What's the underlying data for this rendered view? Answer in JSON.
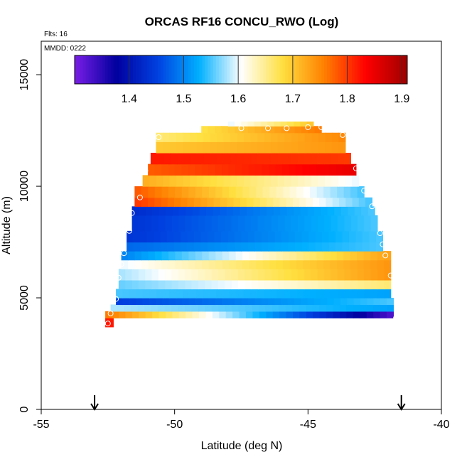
{
  "chart_data": {
    "type": "heatmap",
    "title": "ORCAS RF16 CONCU_RWO (Log)",
    "note_flights": "Flts: 16",
    "note_date": "MMDD: 0222",
    "xlabel": "Latitude (deg N)",
    "ylabel": "Altitude (m)",
    "xlim": [
      -55,
      -40
    ],
    "ylim": [
      0,
      16500
    ],
    "x_ticks": [
      -55,
      -50,
      -45,
      -40
    ],
    "x_tick_labels": [
      "-55",
      "-50",
      "-45",
      "-40"
    ],
    "y_ticks": [
      0,
      5000,
      10000,
      15000
    ],
    "y_tick_labels": [
      "0",
      "5000",
      "10000",
      "15000"
    ],
    "colorbar": {
      "range": [
        1.3,
        1.91
      ],
      "ticks": [
        1.4,
        1.5,
        1.6,
        1.7,
        1.8,
        1.9
      ],
      "tick_labels": [
        "1.4",
        "1.5",
        "1.6",
        "1.7",
        "1.8",
        "1.9"
      ],
      "colors": [
        "#7a1ee6",
        "#00009e",
        "#0040e0",
        "#00b0ff",
        "#ffffff",
        "#ffe040",
        "#ff8000",
        "#ff0000",
        "#9e0000"
      ]
    },
    "arrows_latitude": [
      -53.0,
      -41.5
    ],
    "layers": [
      {
        "y0": 3700,
        "y1": 4100,
        "x0": -52.6,
        "x1": -52.3,
        "v_south": 1.82,
        "v_north": 1.82
      },
      {
        "y0": 4100,
        "y1": 4400,
        "x0": -52.6,
        "x1": -41.8,
        "v_south": 1.76,
        "v_north": 1.33
      },
      {
        "y0": 4400,
        "y1": 4700,
        "x0": -52.4,
        "x1": -41.8,
        "v_south": 1.58,
        "v_north": 1.52
      },
      {
        "y0": 4700,
        "y1": 5000,
        "x0": -52.2,
        "x1": -41.8,
        "v_south": 1.45,
        "v_north": 1.55
      },
      {
        "y0": 5000,
        "y1": 5400,
        "x0": -52.2,
        "x1": -41.9,
        "v_south": 1.55,
        "v_north": 1.52
      },
      {
        "y0": 5400,
        "y1": 5800,
        "x0": -52.1,
        "x1": -41.9,
        "v_south": 1.56,
        "v_north": 1.66
      },
      {
        "y0": 5800,
        "y1": 6300,
        "x0": -52.1,
        "x1": -41.9,
        "v_south": 1.58,
        "v_north": 1.74
      },
      {
        "y0": 6300,
        "y1": 6700,
        "x0": -52.0,
        "x1": -41.9,
        "v_south": 1.6,
        "v_north": 1.74
      },
      {
        "y0": 6700,
        "y1": 7100,
        "x0": -52.0,
        "x1": -41.9,
        "v_south": 1.5,
        "v_north": 1.73
      },
      {
        "y0": 7100,
        "y1": 7500,
        "x0": -51.8,
        "x1": -42.2,
        "v_south": 1.48,
        "v_north": 1.55
      },
      {
        "y0": 7500,
        "y1": 8000,
        "x0": -51.8,
        "x1": -42.2,
        "v_south": 1.44,
        "v_north": 1.55
      },
      {
        "y0": 8000,
        "y1": 8700,
        "x0": -51.6,
        "x1": -42.4,
        "v_south": 1.44,
        "v_north": 1.55
      },
      {
        "y0": 8700,
        "y1": 9100,
        "x0": -51.6,
        "x1": -42.5,
        "v_south": 1.43,
        "v_north": 1.55
      },
      {
        "y0": 9100,
        "y1": 9500,
        "x0": -51.5,
        "x1": -42.6,
        "v_south": 1.8,
        "v_north": 1.55
      },
      {
        "y0": 9500,
        "y1": 10000,
        "x0": -51.5,
        "x1": -42.9,
        "v_south": 1.78,
        "v_north": 1.55
      },
      {
        "y0": 10000,
        "y1": 10500,
        "x0": -51.2,
        "x1": -43.1,
        "v_south": 1.72,
        "v_north": 1.6
      },
      {
        "y0": 10500,
        "y1": 11000,
        "x0": -51.0,
        "x1": -43.2,
        "v_south": 1.78,
        "v_north": 1.85
      },
      {
        "y0": 11000,
        "y1": 11500,
        "x0": -50.9,
        "x1": -43.4,
        "v_south": 1.82,
        "v_north": 1.8
      },
      {
        "y0": 11500,
        "y1": 12000,
        "x0": -50.7,
        "x1": -43.6,
        "v_south": 1.7,
        "v_north": 1.74
      },
      {
        "y0": 12000,
        "y1": 12400,
        "x0": -50.7,
        "x1": -43.6,
        "v_south": 1.66,
        "v_north": 1.75
      },
      {
        "y0": 12400,
        "y1": 12700,
        "x0": -49.0,
        "x1": -44.5,
        "v_south": 1.68,
        "v_north": 1.76
      },
      {
        "y0": 12700,
        "y1": 12900,
        "x0": -48.0,
        "x1": -44.8,
        "v_south": 1.6,
        "v_north": 1.7
      }
    ],
    "markers": [
      {
        "lat": -52.5,
        "alt": 3850
      },
      {
        "lat": -52.4,
        "alt": 4300
      },
      {
        "lat": -52.2,
        "alt": 4950
      },
      {
        "lat": -52.1,
        "alt": 5900
      },
      {
        "lat": -52.0,
        "alt": 6500
      },
      {
        "lat": -51.9,
        "alt": 7000
      },
      {
        "lat": -51.7,
        "alt": 8000
      },
      {
        "lat": -51.6,
        "alt": 8800
      },
      {
        "lat": -51.3,
        "alt": 9500
      },
      {
        "lat": -51.1,
        "alt": 10700
      },
      {
        "lat": -50.6,
        "alt": 12200
      },
      {
        "lat": -47.5,
        "alt": 12600
      },
      {
        "lat": -46.5,
        "alt": 12600
      },
      {
        "lat": -45.8,
        "alt": 12600
      },
      {
        "lat": -45.0,
        "alt": 12650
      },
      {
        "lat": -44.5,
        "alt": 12650
      },
      {
        "lat": -43.7,
        "alt": 12300
      },
      {
        "lat": -43.2,
        "alt": 10800
      },
      {
        "lat": -42.9,
        "alt": 9800
      },
      {
        "lat": -42.6,
        "alt": 9100
      },
      {
        "lat": -42.3,
        "alt": 7900
      },
      {
        "lat": -42.2,
        "alt": 7400
      },
      {
        "lat": -42.1,
        "alt": 6900
      },
      {
        "lat": -41.9,
        "alt": 6000
      },
      {
        "lat": -41.7,
        "alt": 4100
      }
    ]
  }
}
